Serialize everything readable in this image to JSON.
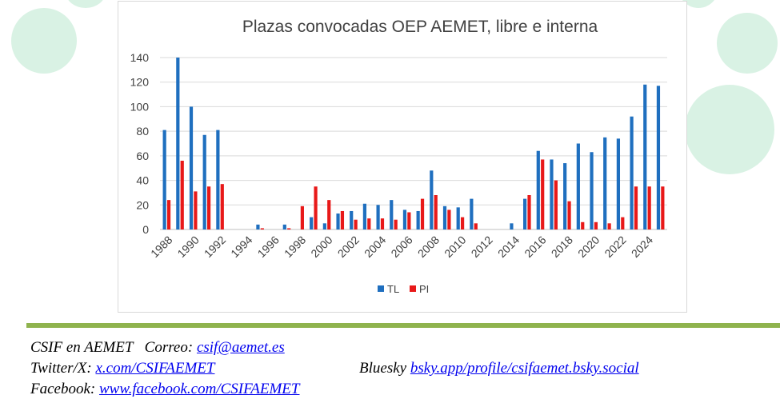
{
  "colors": {
    "tl": "#1f6fbf",
    "pi": "#e81919",
    "divider": "#8fb34e",
    "decoration": "#d9f2e4"
  },
  "chart_data": {
    "type": "bar",
    "title": "Plazas convocadas OEP AEMET, libre e interna",
    "xlabel": "",
    "ylabel": "",
    "ylim": [
      0,
      140
    ],
    "yticks": [
      0,
      20,
      40,
      60,
      80,
      100,
      120,
      140
    ],
    "grid": true,
    "legend_position": "bottom",
    "categories": [
      "1988",
      "1989",
      "1990",
      "1991",
      "1992",
      "1993",
      "1994",
      "1995",
      "1996",
      "1997",
      "1998",
      "1999",
      "2000",
      "2001",
      "2002",
      "2003",
      "2004",
      "2005",
      "2006",
      "2007",
      "2008",
      "2009",
      "2010",
      "2011",
      "2012",
      "2013",
      "2014",
      "2015",
      "2016",
      "2017",
      "2018",
      "2019",
      "2020",
      "2021",
      "2022",
      "2023",
      "2024",
      "2025"
    ],
    "xtick_labels": [
      "1988",
      "1990",
      "1992",
      "1994",
      "1996",
      "1998",
      "2000",
      "2002",
      "2004",
      "2006",
      "2008",
      "2010",
      "2012",
      "2014",
      "2016",
      "2018",
      "2020",
      "2022",
      "2024"
    ],
    "series": [
      {
        "name": "TL",
        "values": [
          81,
          140,
          100,
          77,
          81,
          0,
          0,
          4,
          0,
          4,
          0,
          10,
          5,
          13,
          15,
          21,
          20,
          24,
          16,
          15,
          48,
          19,
          18,
          25,
          0,
          0,
          5,
          25,
          64,
          57,
          54,
          70,
          63,
          75,
          74,
          92,
          118,
          117
        ]
      },
      {
        "name": "PI",
        "values": [
          24,
          56,
          31,
          35,
          37,
          0,
          0,
          1,
          0,
          1,
          19,
          35,
          24,
          15,
          8,
          9,
          9,
          8,
          14,
          25,
          28,
          16,
          10,
          5,
          0,
          0,
          0,
          28,
          57,
          40,
          23,
          6,
          6,
          5,
          10,
          35,
          35,
          35
        ]
      }
    ]
  },
  "footer": {
    "org": "CSIF en AEMET",
    "email_label": "Correo:",
    "email": "csif@aemet.es",
    "twitter_label": "Twitter/X:",
    "twitter": "x.com/CSIFAEMET",
    "bluesky_label": "Bluesky",
    "bluesky": "bsky.app/profile/csifaemet.bsky.social",
    "facebook_label": "Facebook:",
    "facebook": "www.facebook.com/CSIFAEMET"
  }
}
